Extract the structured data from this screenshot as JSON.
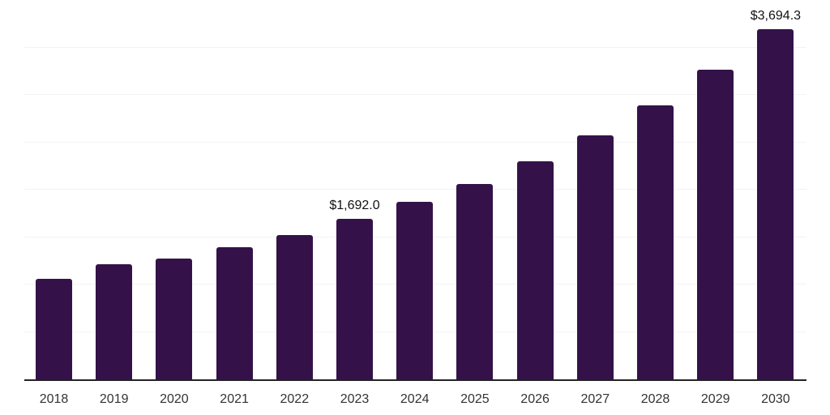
{
  "chart_data": {
    "type": "bar",
    "title": "",
    "xlabel": "",
    "ylabel": "",
    "categories": [
      "2018",
      "2019",
      "2020",
      "2021",
      "2022",
      "2023",
      "2024",
      "2025",
      "2026",
      "2027",
      "2028",
      "2029",
      "2030"
    ],
    "values": [
      1060,
      1215,
      1276,
      1390,
      1524,
      1692.0,
      1868,
      2064,
      2300,
      2571,
      2886,
      3266,
      3694.3
    ],
    "data_labels": {
      "2023": "$1,692.0",
      "2030": "$3,694.3"
    },
    "ylim": [
      0,
      4000
    ],
    "grid": true,
    "gridline_step": 500,
    "legend": false,
    "y_axis_labels_visible": false,
    "colors": {
      "bar": "#341249",
      "axis": "#222222",
      "gridline": "#f3f3f3",
      "tick_label": "#333333",
      "data_label": "#111111",
      "background": "#ffffff"
    }
  }
}
